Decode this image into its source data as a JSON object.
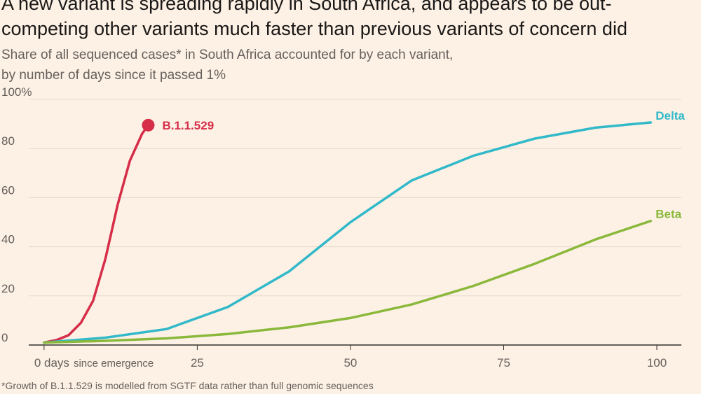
{
  "chart_data": {
    "type": "line",
    "title": [
      "A new variant is spreading rapidly in South Africa, and appears to be out-",
      "competing other variants much faster than previous variants of concern did"
    ],
    "subtitle": [
      "Share of all sequenced cases* in South Africa accounted for by each variant,",
      "by number of days since it passed 1%"
    ],
    "x_annotation": "since emergence",
    "footnote": "*Growth of B.1.1.529 is modelled from SGTF data rather than full genomic sequences",
    "xlim": [
      -2.5,
      104
    ],
    "ylim": [
      0,
      100
    ],
    "xticks": [
      {
        "value": 0,
        "label": "0 days"
      },
      25,
      50,
      75,
      100
    ],
    "yticks": [
      0,
      20,
      40,
      60,
      80,
      {
        "value": 100,
        "label": "100%"
      }
    ],
    "grid": true,
    "series": [
      {
        "name": "B.1.1.529",
        "color": "#d62d48",
        "end_marker": true,
        "x": [
          0,
          2,
          4,
          6,
          8,
          10,
          12,
          14,
          16,
          17
        ],
        "values": [
          1,
          2,
          4,
          9,
          18,
          35,
          57,
          75,
          86,
          89.5
        ]
      },
      {
        "name": "Delta",
        "color": "#32b9c9",
        "end_marker": false,
        "x": [
          0,
          10,
          20,
          30,
          40,
          50,
          60,
          70,
          80,
          90,
          99
        ],
        "values": [
          1,
          3,
          6.5,
          15.5,
          30,
          50,
          67,
          77,
          84,
          88.5,
          90.6
        ]
      },
      {
        "name": "Beta",
        "color": "#8ab83b",
        "end_marker": false,
        "x": [
          0,
          10,
          20,
          30,
          40,
          50,
          60,
          70,
          80,
          90,
          99
        ],
        "values": [
          1,
          1.7,
          2.7,
          4.5,
          7.2,
          11,
          16.5,
          24,
          33,
          43,
          50.5
        ]
      }
    ]
  }
}
